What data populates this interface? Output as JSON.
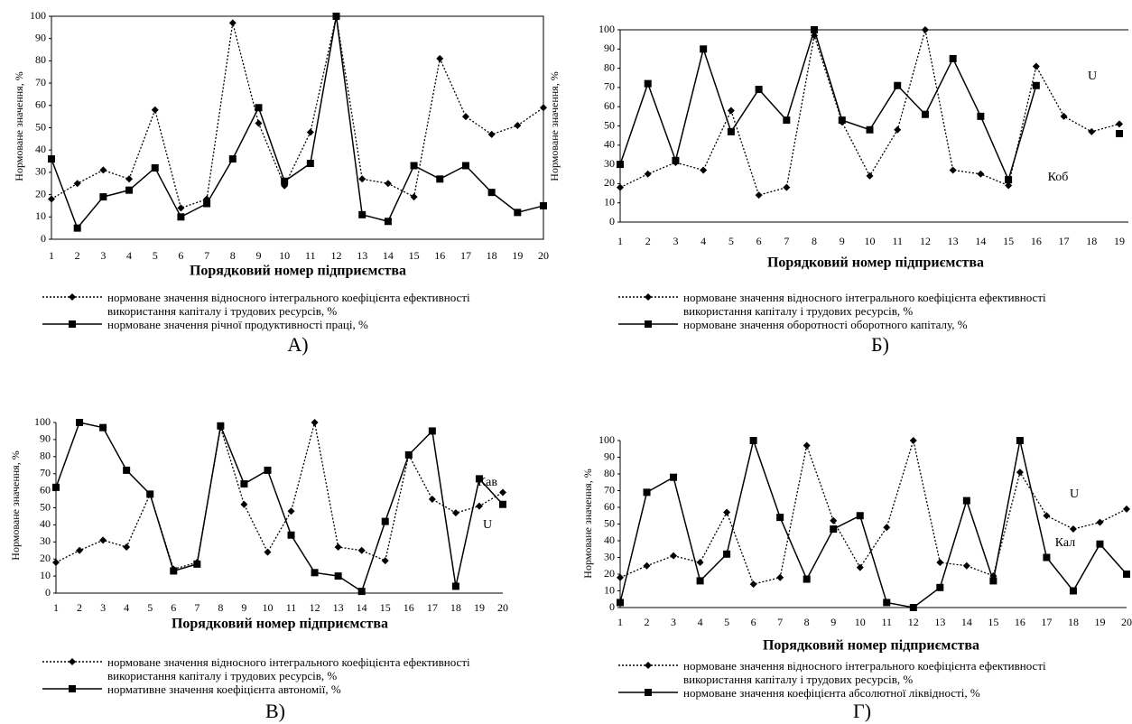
{
  "chart_data": [
    {
      "type": "line",
      "y_label": "Нормоване значення, %",
      "x_label": "Порядковий номер підприємства",
      "caption": "А)",
      "categories": [
        "1",
        "2",
        "3",
        "4",
        "5",
        "6",
        "7",
        "8",
        "9",
        "10",
        "11",
        "12",
        "13",
        "14",
        "15",
        "16",
        "17",
        "18",
        "19",
        "20"
      ],
      "ylim": [
        0,
        100
      ],
      "yticks": [
        0,
        10,
        20,
        30,
        40,
        50,
        60,
        70,
        80,
        90,
        100
      ],
      "frame": true,
      "annotations": [],
      "series": [
        {
          "name": "нормоване значення відносного інтегрального коефіцієнта ефективності використання капіталу і трудових ресурсів, %",
          "color": "#000000",
          "line_style": "dotted",
          "marker": "diamond",
          "values": [
            18,
            25,
            31,
            27,
            58,
            14,
            18,
            97,
            52,
            24,
            48,
            100,
            27,
            25,
            19,
            81,
            55,
            47,
            51,
            59
          ]
        },
        {
          "name": "нормоване значення річної продуктивності праці, %",
          "color": "#000000",
          "line_style": "solid",
          "marker": "square",
          "values": [
            36,
            5,
            19,
            22,
            32,
            10,
            16,
            36,
            59,
            26,
            34,
            100,
            11,
            8,
            33,
            27,
            33,
            21,
            12,
            15
          ]
        }
      ]
    },
    {
      "type": "line",
      "y_label": "Нормоване значення, %",
      "x_label": "Порядковий номер підприємства",
      "caption": "Б)",
      "categories": [
        "1",
        "2",
        "3",
        "4",
        "5",
        "6",
        "7",
        "8",
        "9",
        "10",
        "11",
        "12",
        "13",
        "14",
        "15",
        "16",
        "17",
        "18",
        "19"
      ],
      "ylim": [
        0,
        100
      ],
      "yticks": [
        0,
        10,
        20,
        30,
        40,
        50,
        60,
        70,
        80,
        90,
        100
      ],
      "frame": false,
      "annotations": [
        "U",
        "Коб"
      ],
      "series": [
        {
          "name": "нормоване значення відносного інтегрального коефіцієнта ефективності використання капіталу і трудових ресурсів, %",
          "color": "#000000",
          "line_style": "dotted",
          "marker": "diamond",
          "values": [
            18,
            25,
            31,
            27,
            58,
            14,
            18,
            97,
            52,
            24,
            48,
            100,
            27,
            25,
            19,
            81,
            55,
            47,
            51
          ]
        },
        {
          "name": "нормоване значення оборотності оборотного капіталу, %",
          "color": "#000000",
          "line_style": "solid",
          "marker": "square",
          "values": [
            30,
            72,
            32,
            90,
            47,
            69,
            53,
            100,
            53,
            48,
            71,
            56,
            85,
            55,
            22,
            71,
            null,
            null,
            46
          ]
        }
      ]
    },
    {
      "type": "line",
      "y_label": "Нормоване значення, %",
      "x_label": "Порядковий номер підприємства",
      "caption": "В)",
      "categories": [
        "1",
        "2",
        "3",
        "4",
        "5",
        "6",
        "7",
        "8",
        "9",
        "10",
        "11",
        "12",
        "13",
        "14",
        "15",
        "16",
        "17",
        "18",
        "19",
        "20"
      ],
      "ylim": [
        0,
        100
      ],
      "yticks": [
        0,
        10,
        20,
        30,
        40,
        50,
        60,
        70,
        80,
        90,
        100
      ],
      "frame": false,
      "annotations": [
        "Кав",
        "U"
      ],
      "series": [
        {
          "name": "нормоване значення відносного інтегрального коефіцієнта ефективності використання капіталу і трудових ресурсів, %",
          "color": "#000000",
          "line_style": "dotted",
          "marker": "diamond",
          "values": [
            18,
            25,
            31,
            27,
            58,
            14,
            18,
            97,
            52,
            24,
            48,
            100,
            27,
            25,
            19,
            81,
            55,
            47,
            51,
            59
          ]
        },
        {
          "name": "нормативне значення коефіцієнта автономії, %",
          "color": "#000000",
          "line_style": "solid",
          "marker": "square",
          "values": [
            62,
            100,
            97,
            72,
            58,
            13,
            17,
            98,
            64,
            72,
            34,
            12,
            10,
            1,
            42,
            81,
            95,
            4,
            67,
            52
          ]
        }
      ]
    },
    {
      "type": "line",
      "y_label": "Нормоване значення, %",
      "x_label": "Порядковий номер підприємства",
      "caption": "Г)",
      "categories": [
        "1",
        "2",
        "3",
        "4",
        "5",
        "6",
        "7",
        "8",
        "9",
        "10",
        "11",
        "12",
        "13",
        "14",
        "15",
        "16",
        "17",
        "18",
        "19",
        "20"
      ],
      "ylim": [
        0,
        100
      ],
      "yticks": [
        0,
        10,
        20,
        30,
        40,
        50,
        60,
        70,
        80,
        90,
        100
      ],
      "frame": false,
      "annotations": [
        "U",
        "Кал"
      ],
      "series": [
        {
          "name": "нормоване значення відносного інтегрального коефіцієнта ефективності використання капіталу і трудових ресурсів, %",
          "color": "#000000",
          "line_style": "dotted",
          "marker": "diamond",
          "values": [
            18,
            25,
            31,
            27,
            57,
            14,
            18,
            97,
            52,
            24,
            48,
            100,
            27,
            25,
            19,
            81,
            55,
            47,
            51,
            59
          ]
        },
        {
          "name": "нормоване значення коефіцієнта абсолютної ліквідності, %",
          "color": "#000000",
          "line_style": "solid",
          "marker": "square",
          "values": [
            3,
            69,
            78,
            16,
            32,
            100,
            54,
            17,
            47,
            55,
            3,
            0,
            12,
            64,
            16,
            100,
            30,
            10,
            38,
            20
          ]
        }
      ]
    }
  ]
}
